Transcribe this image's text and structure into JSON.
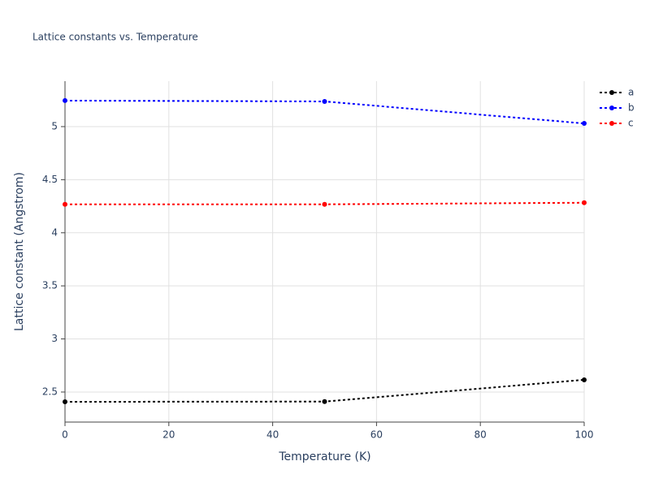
{
  "chart_data": {
    "type": "line",
    "title": "Lattice constants vs. Temperature",
    "x_label": "Temperature (K)",
    "y_label": "Lattice constant (Angstrom)",
    "x": [
      0,
      50,
      100
    ],
    "series": [
      {
        "name": "a",
        "color": "#000000",
        "values": [
          2.408,
          2.41,
          2.615
        ]
      },
      {
        "name": "b",
        "color": "#0000ff",
        "values": [
          5.245,
          5.237,
          5.03
        ]
      },
      {
        "name": "c",
        "color": "#ff0000",
        "values": [
          4.268,
          4.268,
          4.283
        ]
      }
    ],
    "xlim": [
      0,
      100
    ],
    "xticks": [
      0,
      20,
      40,
      60,
      80,
      100
    ],
    "ylim": [
      2.217,
      5.428
    ],
    "yticks": [
      2.5,
      3,
      3.5,
      4,
      4.5,
      5
    ],
    "grid": true,
    "legend": "right"
  }
}
